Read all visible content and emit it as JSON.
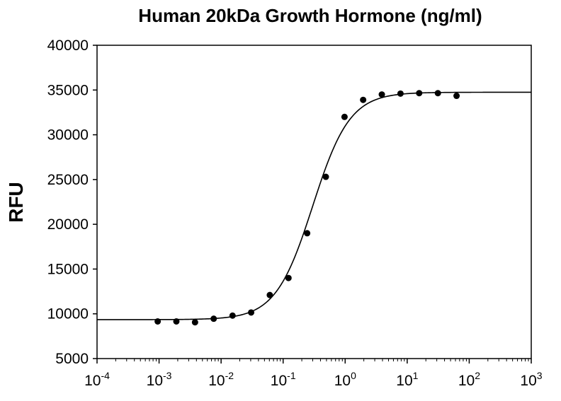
{
  "chart_data": {
    "type": "scatter",
    "title": "Human 20kDa Growth Hormone (ng/ml)",
    "xlabel": "",
    "ylabel": "RFU",
    "xscale": "log",
    "xlim": [
      0.0001,
      1000
    ],
    "ylim": [
      5000,
      40000
    ],
    "x_ticks": [
      {
        "value": 0.0001,
        "base": "10",
        "exp": "-4"
      },
      {
        "value": 0.001,
        "base": "10",
        "exp": "-3"
      },
      {
        "value": 0.01,
        "base": "10",
        "exp": "-2"
      },
      {
        "value": 0.1,
        "base": "10",
        "exp": "-1"
      },
      {
        "value": 1,
        "base": "10",
        "exp": "0"
      },
      {
        "value": 10,
        "base": "10",
        "exp": "1"
      },
      {
        "value": 100,
        "base": "10",
        "exp": "2"
      },
      {
        "value": 1000,
        "base": "10",
        "exp": "3"
      }
    ],
    "y_ticks": [
      5000,
      10000,
      15000,
      20000,
      25000,
      30000,
      35000,
      40000
    ],
    "grid": false,
    "series": [
      {
        "type": "scatter",
        "color": "#000000",
        "x": [
          0.00095,
          0.0019,
          0.0038,
          0.0076,
          0.0153,
          0.0305,
          0.061,
          0.122,
          0.244,
          0.488,
          0.977,
          1.95,
          3.9,
          7.8,
          15.6,
          31.25,
          62.5
        ],
        "y": [
          9150,
          9150,
          9050,
          9450,
          9800,
          10150,
          12100,
          14000,
          19000,
          25300,
          32000,
          33900,
          34500,
          34600,
          34650,
          34650,
          34350
        ]
      },
      {
        "type": "line",
        "color": "#000000",
        "fit": "4PL",
        "bottom": 9350,
        "top": 34750,
        "ec50": 0.3,
        "hill": 1.45
      }
    ]
  }
}
